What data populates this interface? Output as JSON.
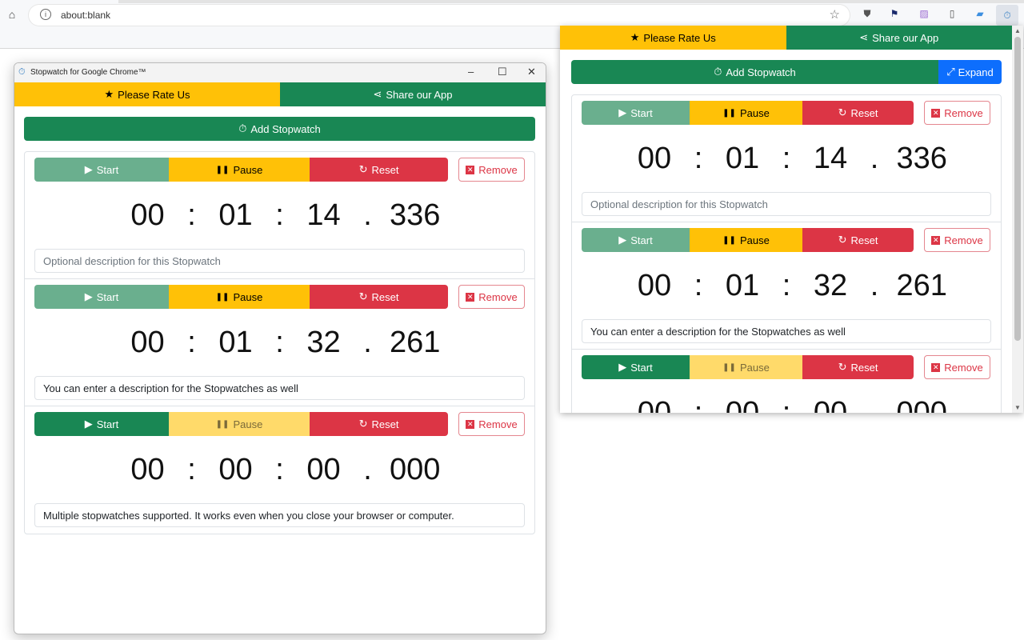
{
  "browser": {
    "url": "about:blank",
    "extensions": [
      "shield-icon",
      "flag-icon",
      "puzzle-icon",
      "phone-icon",
      "chat-icon",
      "stopwatch-icon"
    ]
  },
  "window": {
    "title": "Stopwatch for Google Chrome™"
  },
  "app": {
    "rate_label": "Please Rate Us",
    "share_label": "Share our App",
    "add_label": "Add Stopwatch",
    "expand_label": "Expand",
    "start_label": "Start",
    "pause_label": "Pause",
    "reset_label": "Reset",
    "remove_label": "Remove",
    "placeholder": "Optional description for this Stopwatch"
  },
  "stopwatches": [
    {
      "h": "00",
      "m": "01",
      "s": "14",
      "ms": "336",
      "description": "",
      "running": false
    },
    {
      "h": "00",
      "m": "01",
      "s": "32",
      "ms": "261",
      "description": "You can enter a description for the Stopwatches as well",
      "running": false
    },
    {
      "h": "00",
      "m": "00",
      "s": "00",
      "ms": "000",
      "description": "Multiple stopwatches supported. It works even when you close your browser or computer.",
      "running": false,
      "reset": true
    }
  ],
  "colors": {
    "success": "#198754",
    "warning": "#ffc107",
    "danger": "#dc3545",
    "primary": "#0d6efd"
  }
}
